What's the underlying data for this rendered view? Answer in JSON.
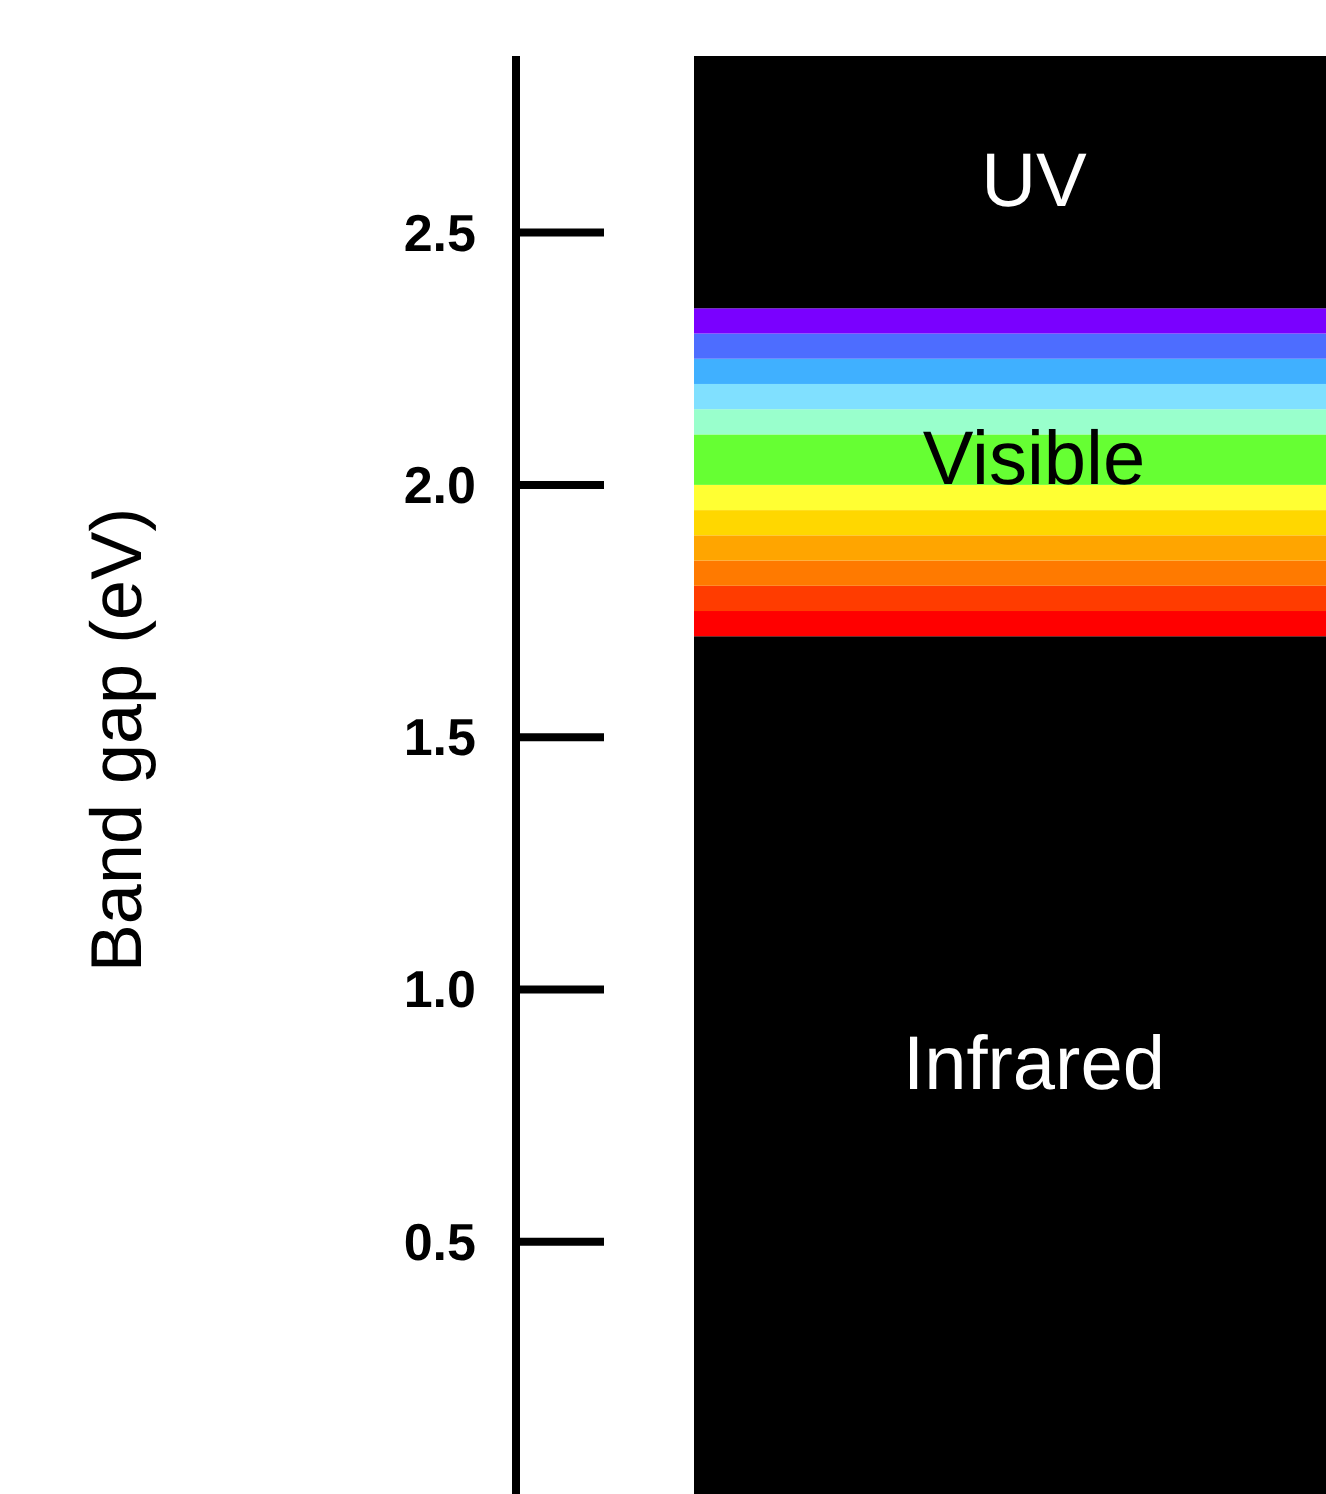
{
  "chart_data": {
    "type": "bar",
    "stacked": true,
    "ylabel": "Band gap (eV)",
    "categories": [
      null
    ],
    "ylim": [
      0,
      2.85
    ],
    "yticks": [
      {
        "value": 0.5,
        "label": "0.5"
      },
      {
        "value": 1,
        "label": "1.0"
      },
      {
        "value": 1.5,
        "label": "1.5"
      },
      {
        "value": 2,
        "label": "2.0"
      },
      {
        "value": 2.5,
        "label": "2.5"
      }
    ],
    "series": [
      {
        "name": "Infrared",
        "color": "#000000",
        "values": [
          1.7
        ]
      },
      {
        "color": "#ff0000",
        "values": [
          0.05
        ]
      },
      {
        "color": "#ff3c00",
        "values": [
          0.05
        ]
      },
      {
        "color": "#ff7a00",
        "values": [
          0.05
        ]
      },
      {
        "color": "#ffa500",
        "values": [
          0.05
        ]
      },
      {
        "color": "#ffd700",
        "values": [
          0.05
        ]
      },
      {
        "color": "#ffff33",
        "values": [
          0.05
        ]
      },
      {
        "name": "Visible",
        "color": "#66ff33",
        "values": [
          0.1
        ]
      },
      {
        "color": "#99ffcc",
        "values": [
          0.05
        ]
      },
      {
        "color": "#80e0ff",
        "values": [
          0.05
        ]
      },
      {
        "color": "#40b0ff",
        "values": [
          0.05
        ]
      },
      {
        "color": "#4d6dff",
        "values": [
          0.05
        ]
      },
      {
        "color": "#7a00ff",
        "values": [
          0.05
        ]
      },
      {
        "name": "UV",
        "color": "#000000",
        "values": [
          0.5
        ]
      }
    ]
  }
}
